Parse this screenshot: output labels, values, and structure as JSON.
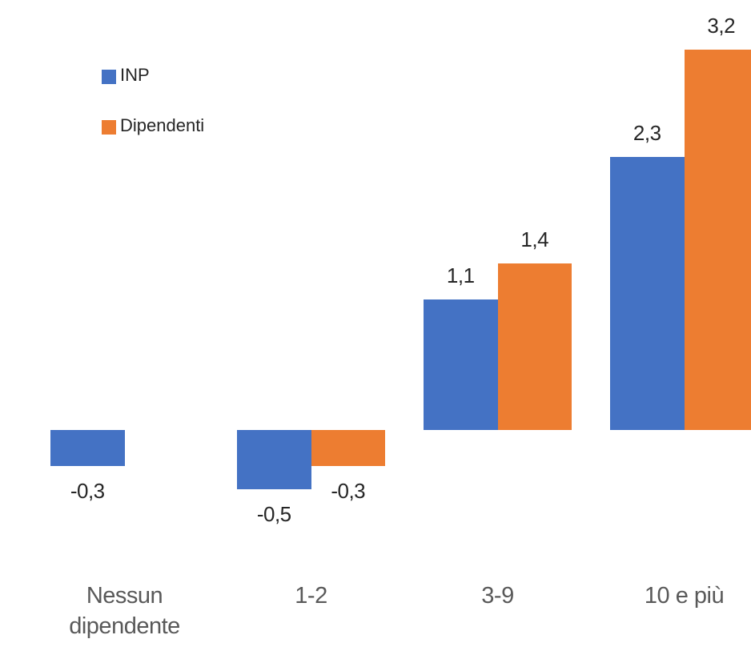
{
  "chart_data": {
    "type": "bar",
    "categories": [
      "Nessun dipendente",
      "1-2",
      "3-9",
      "10 e più"
    ],
    "series": [
      {
        "name": "INP",
        "color": "#4472c4",
        "values": [
          -0.3,
          -0.5,
          1.1,
          2.3
        ],
        "value_labels": [
          "-0,3",
          "-0,5",
          "1,1",
          "2,3"
        ]
      },
      {
        "name": "Dipendenti",
        "color": "#ed7d31",
        "values": [
          null,
          -0.3,
          1.4,
          3.2
        ],
        "value_labels": [
          null,
          "-0,3",
          "1,4",
          "3,2"
        ]
      }
    ],
    "legend": "upper left"
  }
}
